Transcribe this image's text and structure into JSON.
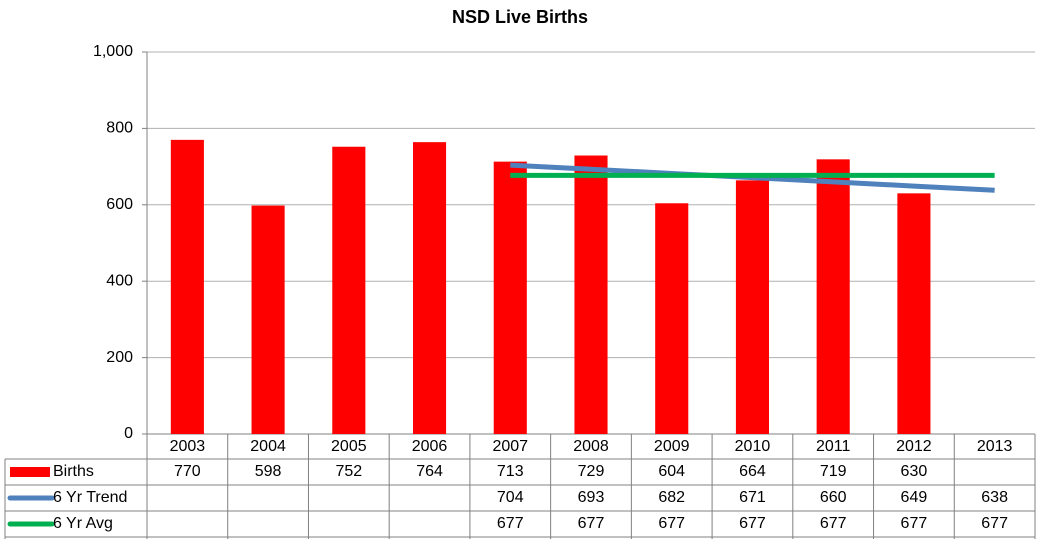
{
  "chart_data": {
    "type": "bar",
    "title": "NSD Live Births",
    "categories": [
      "2003",
      "2004",
      "2005",
      "2006",
      "2007",
      "2008",
      "2009",
      "2010",
      "2011",
      "2012",
      "2013"
    ],
    "series": [
      {
        "name": "Births",
        "type": "bar",
        "color": "#ff0000",
        "values": [
          770,
          598,
          752,
          764,
          713,
          729,
          604,
          664,
          719,
          630,
          null
        ]
      },
      {
        "name": "6 Yr Trend",
        "type": "line",
        "color": "#4f81bd",
        "values": [
          null,
          null,
          null,
          null,
          704,
          693,
          682,
          671,
          660,
          649,
          638
        ]
      },
      {
        "name": "6 Yr Avg",
        "type": "line",
        "color": "#00b050",
        "values": [
          null,
          null,
          null,
          null,
          677,
          677,
          677,
          677,
          677,
          677,
          677
        ]
      }
    ],
    "ylim": [
      0,
      1000
    ],
    "yticks": [
      0,
      200,
      400,
      600,
      800,
      {
        "value": 1000,
        "label": "1,000"
      }
    ],
    "grid": true,
    "data_table": true
  }
}
